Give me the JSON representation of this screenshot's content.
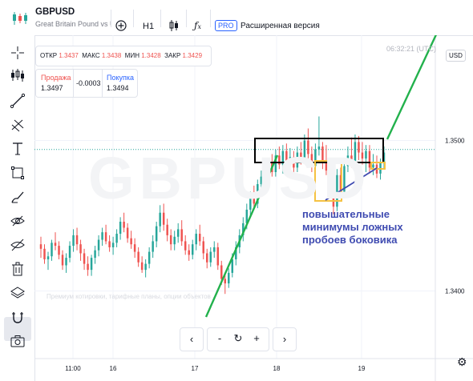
{
  "header": {
    "symbol": "GBPUSD",
    "description": "Great Britain Pound vs U",
    "timeframe": "H1",
    "pro_badge": "PRO",
    "extended_label": "Расширенная версия"
  },
  "ohlc": {
    "open_label": "ОТКР",
    "open": "1.3437",
    "high_label": "МАКС",
    "high": "1.3438",
    "low_label": "МИН",
    "low": "1.3428",
    "close_label": "ЗАКР",
    "close": "1.3429"
  },
  "trade": {
    "sell_label": "Продажа",
    "sell_price": "1.3497",
    "spread": "-0.0003",
    "buy_label": "Покупка",
    "buy_price": "1.3494"
  },
  "clock": "06:32:21 (UTC)",
  "currency": "USD",
  "watermark": "GBPUSD",
  "watermark_small": "Премиум котировки, тарифные планы, опции объектов",
  "annotation": {
    "lines": [
      "повышательные",
      "минимумы ложных",
      "пробоев боковика"
    ]
  },
  "nav": {
    "prev": "‹",
    "minus": "-",
    "reset": "↻",
    "plus": "+",
    "next": "›"
  },
  "left_toolbar_icons": [
    "crosshair-icon",
    "indicators-icon",
    "trendline-icon",
    "fib-icon",
    "text-icon",
    "rectangle-icon",
    "brush-icon",
    "eye-cross-icon",
    "hide-icon",
    "delete-icon",
    "layers-icon",
    "magnet-icon",
    "camera-icon"
  ],
  "colors": {
    "up": "#26a69a",
    "down": "#ef5350",
    "trend": "#22b14c",
    "box": "#000000",
    "marker": "#f5c242",
    "arrow": "#3f4bb1",
    "dotted": "#26a69a"
  },
  "chart_data": {
    "type": "candlestick",
    "y_ticks": [
      "1.3500",
      "1.3400"
    ],
    "x_ticks": [
      "11:00",
      "16",
      "17",
      "18",
      "19"
    ],
    "last_price_level": 1.3494,
    "ylim": [
      1.3355,
      1.357
    ],
    "candles": [
      [
        1.3431,
        1.3436,
        1.3422,
        1.3428
      ],
      [
        1.3428,
        1.3431,
        1.3418,
        1.3421
      ],
      [
        1.3421,
        1.3426,
        1.3414,
        1.3423
      ],
      [
        1.3423,
        1.3434,
        1.342,
        1.3432
      ],
      [
        1.3432,
        1.3439,
        1.3427,
        1.343
      ],
      [
        1.343,
        1.3433,
        1.3421,
        1.3424
      ],
      [
        1.3424,
        1.3427,
        1.3414,
        1.3417
      ],
      [
        1.3417,
        1.3425,
        1.3412,
        1.3422
      ],
      [
        1.3422,
        1.3433,
        1.3419,
        1.343
      ],
      [
        1.343,
        1.3441,
        1.3426,
        1.3437
      ],
      [
        1.3437,
        1.3442,
        1.3427,
        1.3431
      ],
      [
        1.3431,
        1.3434,
        1.342,
        1.3425
      ],
      [
        1.3425,
        1.3428,
        1.3414,
        1.3418
      ],
      [
        1.3418,
        1.3423,
        1.341,
        1.3414
      ],
      [
        1.3414,
        1.3424,
        1.341,
        1.3422
      ],
      [
        1.3422,
        1.343,
        1.3418,
        1.3427
      ],
      [
        1.3427,
        1.3437,
        1.3423,
        1.3434
      ],
      [
        1.3434,
        1.3442,
        1.343,
        1.3439
      ],
      [
        1.3439,
        1.3444,
        1.3431,
        1.3433
      ],
      [
        1.3433,
        1.3437,
        1.3426,
        1.3429
      ],
      [
        1.3429,
        1.3436,
        1.3424,
        1.3432
      ],
      [
        1.3432,
        1.3441,
        1.3429,
        1.3438
      ],
      [
        1.3438,
        1.3449,
        1.3434,
        1.3446
      ],
      [
        1.3446,
        1.3452,
        1.3439,
        1.3442
      ],
      [
        1.3442,
        1.3445,
        1.3432,
        1.3435
      ],
      [
        1.3435,
        1.344,
        1.3428,
        1.3431
      ],
      [
        1.3431,
        1.3435,
        1.3422,
        1.3426
      ],
      [
        1.3426,
        1.3429,
        1.3416,
        1.3419
      ],
      [
        1.3419,
        1.3423,
        1.3412,
        1.3414
      ],
      [
        1.3414,
        1.3421,
        1.3409,
        1.3418
      ],
      [
        1.3418,
        1.3429,
        1.3415,
        1.3426
      ],
      [
        1.3426,
        1.3437,
        1.3422,
        1.3433
      ],
      [
        1.3433,
        1.3446,
        1.3429,
        1.3443
      ],
      [
        1.3443,
        1.3457,
        1.3439,
        1.3452
      ],
      [
        1.3452,
        1.3458,
        1.344,
        1.3444
      ],
      [
        1.3444,
        1.3448,
        1.3433,
        1.3437
      ],
      [
        1.3437,
        1.3441,
        1.3427,
        1.3431
      ],
      [
        1.3431,
        1.344,
        1.3427,
        1.3436
      ],
      [
        1.3436,
        1.3445,
        1.3432,
        1.3441
      ],
      [
        1.3441,
        1.3447,
        1.343,
        1.3433
      ],
      [
        1.3433,
        1.3437,
        1.3424,
        1.3427
      ],
      [
        1.3427,
        1.3431,
        1.342,
        1.3424
      ],
      [
        1.3424,
        1.3434,
        1.3421,
        1.3431
      ],
      [
        1.3431,
        1.3441,
        1.3427,
        1.3438
      ],
      [
        1.3438,
        1.3444,
        1.343,
        1.3433
      ],
      [
        1.3433,
        1.3436,
        1.3421,
        1.3425
      ],
      [
        1.3425,
        1.3428,
        1.3415,
        1.3419
      ],
      [
        1.3419,
        1.3429,
        1.3416,
        1.3426
      ],
      [
        1.3426,
        1.3433,
        1.3422,
        1.3429
      ],
      [
        1.3429,
        1.3432,
        1.3414,
        1.3417
      ],
      [
        1.3417,
        1.342,
        1.3404,
        1.3408
      ],
      [
        1.3408,
        1.3412,
        1.3398,
        1.3405
      ],
      [
        1.3405,
        1.3415,
        1.3402,
        1.3412
      ],
      [
        1.3412,
        1.3425,
        1.3409,
        1.3421
      ],
      [
        1.3421,
        1.3433,
        1.3417,
        1.3429
      ],
      [
        1.3429,
        1.3441,
        1.3425,
        1.3437
      ],
      [
        1.3437,
        1.3449,
        1.3433,
        1.3445
      ],
      [
        1.3445,
        1.3458,
        1.3441,
        1.3454
      ],
      [
        1.3454,
        1.3466,
        1.345,
        1.3462
      ],
      [
        1.3462,
        1.347,
        1.3454,
        1.3458
      ],
      [
        1.3458,
        1.3474,
        1.3455,
        1.3471
      ],
      [
        1.3471,
        1.348,
        1.3466,
        1.3476
      ],
      [
        1.3476,
        1.3486,
        1.3468,
        1.3473
      ],
      [
        1.3473,
        1.3488,
        1.347,
        1.3485
      ],
      [
        1.3485,
        1.3491,
        1.3476,
        1.3479
      ],
      [
        1.3479,
        1.3494,
        1.3476,
        1.349
      ],
      [
        1.349,
        1.3496,
        1.3481,
        1.3484
      ],
      [
        1.3484,
        1.3497,
        1.3478,
        1.3493
      ],
      [
        1.3493,
        1.3498,
        1.3482,
        1.3486
      ],
      [
        1.3486,
        1.3495,
        1.3475,
        1.3489
      ],
      [
        1.3489,
        1.3493,
        1.3478,
        1.3482
      ],
      [
        1.3482,
        1.3496,
        1.3479,
        1.3492
      ],
      [
        1.3492,
        1.3499,
        1.3484,
        1.3488
      ],
      [
        1.3488,
        1.3504,
        1.3485,
        1.35
      ],
      [
        1.35,
        1.3508,
        1.3487,
        1.3491
      ],
      [
        1.3491,
        1.3496,
        1.3479,
        1.3483
      ],
      [
        1.3483,
        1.3498,
        1.348,
        1.3494
      ],
      [
        1.3494,
        1.3516,
        1.349,
        1.3496
      ],
      [
        1.3496,
        1.3499,
        1.3481,
        1.3486
      ],
      [
        1.3486,
        1.3497,
        1.3477,
        1.348
      ],
      [
        1.348,
        1.3488,
        1.3468,
        1.3472
      ],
      [
        1.3472,
        1.3477,
        1.3451,
        1.3456
      ],
      [
        1.3456,
        1.3481,
        1.3453,
        1.3477
      ],
      [
        1.3477,
        1.3482,
        1.3462,
        1.3466
      ],
      [
        1.3466,
        1.3487,
        1.3462,
        1.3483
      ],
      [
        1.3483,
        1.3496,
        1.3479,
        1.349
      ],
      [
        1.349,
        1.3502,
        1.3482,
        1.3486
      ],
      [
        1.3486,
        1.3504,
        1.3483,
        1.3499
      ],
      [
        1.3499,
        1.3503,
        1.3487,
        1.3492
      ],
      [
        1.3492,
        1.3499,
        1.3484,
        1.3488
      ],
      [
        1.3488,
        1.3497,
        1.3479,
        1.3493
      ],
      [
        1.3493,
        1.3497,
        1.3478,
        1.3482
      ],
      [
        1.3482,
        1.3491,
        1.3477,
        1.3484
      ],
      [
        1.3484,
        1.349,
        1.3475,
        1.3478
      ],
      [
        1.3478,
        1.3488,
        1.3474,
        1.3485
      ],
      [
        1.3485,
        1.3496,
        1.3481,
        1.3492
      ]
    ],
    "annotation_text": "повышательные минимумы ложных пробоев боковика"
  }
}
